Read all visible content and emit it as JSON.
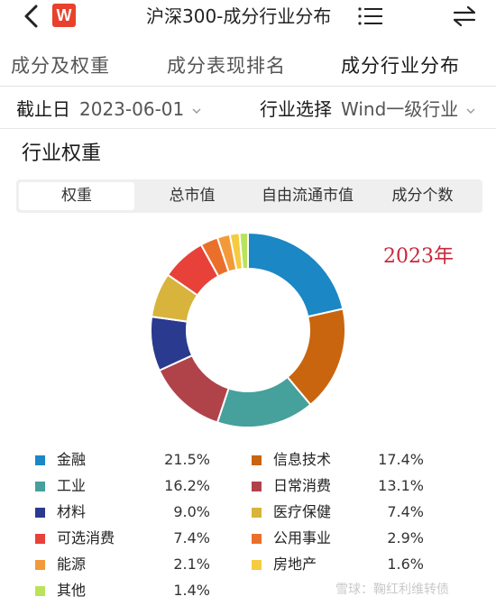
{
  "header": {
    "logo_text": "W",
    "title": "沪深300-成分行业分布",
    "icons": [
      "back-arrow",
      "menu-lines",
      "swap-arrows"
    ]
  },
  "tabs": [
    {
      "label": "成分及权重",
      "active": false
    },
    {
      "label": "成分表现排名",
      "active": false
    },
    {
      "label": "成分行业分布",
      "active": true
    }
  ],
  "filters": {
    "date_label": "截止日",
    "date_value": "2023-06-01",
    "industry_label": "行业选择",
    "industry_value": "Wind一级行业"
  },
  "section_title": "行业权重",
  "segments": [
    {
      "label": "权重",
      "active": true
    },
    {
      "label": "总市值",
      "active": false
    },
    {
      "label": "自由流通市值",
      "active": false
    },
    {
      "label": "成分个数",
      "active": false
    }
  ],
  "chart_data": {
    "type": "pie",
    "donut": true,
    "annotation": "2023年",
    "unit": "%",
    "slices": [
      {
        "name": "金融",
        "value": 21.5,
        "color": "#1b87c4"
      },
      {
        "name": "信息技术",
        "value": 17.4,
        "color": "#c9650f"
      },
      {
        "name": "工业",
        "value": 16.2,
        "color": "#46a09b"
      },
      {
        "name": "日常消费",
        "value": 13.1,
        "color": "#b0434a"
      },
      {
        "name": "材料",
        "value": 9.0,
        "color": "#2a3a8e"
      },
      {
        "name": "医疗保健",
        "value": 7.4,
        "color": "#d8b43c"
      },
      {
        "name": "可选消费",
        "value": 7.4,
        "color": "#e8413a"
      },
      {
        "name": "公用事业",
        "value": 2.9,
        "color": "#ea6f2b"
      },
      {
        "name": "能源",
        "value": 2.1,
        "color": "#f29a3a"
      },
      {
        "name": "房地产",
        "value": 1.6,
        "color": "#f5cb42"
      },
      {
        "name": "其他",
        "value": 1.4,
        "color": "#b9e35a"
      }
    ],
    "legend_values": [
      "21.5%",
      "17.4%",
      "16.2%",
      "13.1%",
      "9.0%",
      "7.4%",
      "7.4%",
      "2.9%",
      "2.1%",
      "1.6%",
      "1.4%"
    ]
  },
  "watermark": "雪球：鞠红利维转债"
}
